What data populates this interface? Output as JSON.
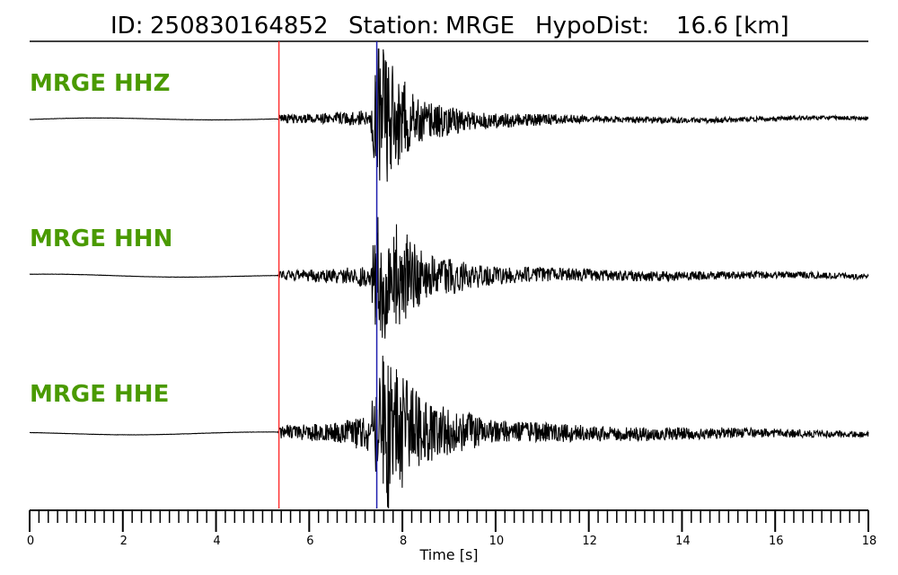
{
  "header": {
    "id_label": "ID:",
    "id_value": "250830164852",
    "station_label": "Station:",
    "station_value": "MRGE",
    "hypodist_label": "HypoDist:",
    "hypodist_value": "16.6",
    "hypodist_unit": "[km]"
  },
  "colors": {
    "channel_label": "#4a9a00",
    "trace": "#000000",
    "p_pick": "#ff3333",
    "s_pick": "#1f1fb0",
    "rule": "#000000"
  },
  "chart_data": {
    "type": "line",
    "xlabel": "Time [s]",
    "xlim": [
      0,
      18
    ],
    "x_major_ticks": [
      0,
      2,
      4,
      6,
      8,
      10,
      12,
      14,
      16,
      18
    ],
    "x_minor_tick_step": 0.2,
    "picks": [
      {
        "phase": "P",
        "time": 5.35,
        "color": "#ff3333"
      },
      {
        "phase": "S",
        "time": 7.45,
        "color": "#1f1fb0"
      }
    ],
    "series": [
      {
        "name": "MRGE HHZ",
        "envelope": [
          [
            0,
            0.01
          ],
          [
            5.3,
            0.01
          ],
          [
            5.35,
            0.05
          ],
          [
            6.5,
            0.06
          ],
          [
            7.3,
            0.1
          ],
          [
            7.5,
            0.85
          ],
          [
            7.7,
            0.7
          ],
          [
            8.3,
            0.25
          ],
          [
            9.5,
            0.1
          ],
          [
            12,
            0.04
          ],
          [
            18,
            0.02
          ]
        ]
      },
      {
        "name": "MRGE HHN",
        "envelope": [
          [
            0,
            0.01
          ],
          [
            5.3,
            0.01
          ],
          [
            5.35,
            0.05
          ],
          [
            6.5,
            0.08
          ],
          [
            7.3,
            0.12
          ],
          [
            7.5,
            0.85
          ],
          [
            7.7,
            0.75
          ],
          [
            8.5,
            0.25
          ],
          [
            10,
            0.1
          ],
          [
            12.5,
            0.06
          ],
          [
            18,
            0.03
          ]
        ]
      },
      {
        "name": "MRGE HHE",
        "envelope": [
          [
            0,
            0.01
          ],
          [
            5.3,
            0.01
          ],
          [
            5.35,
            0.07
          ],
          [
            6.5,
            0.12
          ],
          [
            7.3,
            0.2
          ],
          [
            7.5,
            0.9
          ],
          [
            7.7,
            0.85
          ],
          [
            8.5,
            0.35
          ],
          [
            10,
            0.12
          ],
          [
            13,
            0.08
          ],
          [
            18,
            0.03
          ]
        ]
      }
    ]
  }
}
